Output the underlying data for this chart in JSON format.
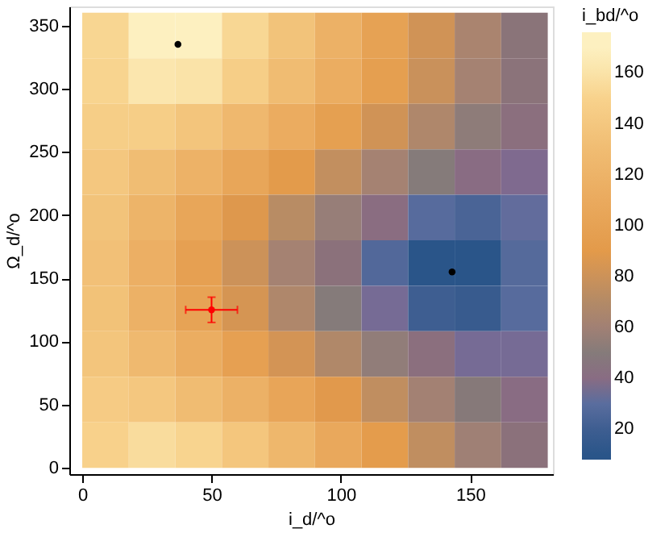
{
  "chart_data": {
    "type": "heatmap",
    "xlabel": "i_d/^o",
    "ylabel": "Ω_d/^o",
    "clabel": "i_bd/^o",
    "x": [
      9,
      27,
      45,
      63,
      81,
      99,
      117,
      135,
      153,
      171
    ],
    "y": [
      342,
      306,
      270,
      234,
      198,
      162,
      126,
      90,
      54,
      18
    ],
    "cells": [
      [
        152,
        169,
        171,
        153,
        136,
        118,
        100,
        82,
        64,
        46
      ],
      [
        151,
        162,
        160,
        146,
        130,
        113,
        96,
        79,
        62,
        45
      ],
      [
        146,
        146,
        138,
        126,
        112,
        97,
        82,
        67,
        53,
        42
      ],
      [
        140,
        131,
        119,
        105,
        91,
        76,
        62,
        50,
        40,
        36
      ],
      [
        136,
        121,
        105,
        88,
        72,
        56,
        41,
        29,
        24,
        31
      ],
      [
        134,
        116,
        98,
        80,
        62,
        44,
        27,
        9,
        11,
        28
      ],
      [
        135,
        118,
        101,
        84,
        67,
        50,
        34,
        20,
        18,
        29
      ],
      [
        138,
        127,
        113,
        98,
        83,
        68,
        54,
        42,
        34,
        34
      ],
      [
        144,
        140,
        130,
        118,
        104,
        89,
        75,
        61,
        49,
        40
      ],
      [
        149,
        156,
        151,
        139,
        124,
        108,
        92,
        75,
        59,
        44
      ]
    ],
    "clim": [
      8,
      176
    ],
    "cticks": [
      20,
      40,
      60,
      80,
      100,
      120,
      140,
      160
    ],
    "colors": [
      "#2a5589",
      "#5a6d9e",
      "#857b7a",
      "#b38a66",
      "#e39a4a",
      "#eaaa5e",
      "#f0bc72",
      "#f8d28c",
      "#fdf0c0"
    ],
    "xlim": [
      -5,
      182
    ],
    "ylim": [
      -5,
      365
    ],
    "xticks": [
      0,
      50,
      100,
      150
    ],
    "yticks": [
      0,
      50,
      100,
      150,
      200,
      250,
      300,
      350
    ],
    "grid": false,
    "series": [
      {
        "type": "scatter",
        "x": [
          50
        ],
        "values": [
          125
        ],
        "color": "#ff0000",
        "errors": [
          10
        ],
        "xerrors": [
          10
        ]
      },
      {
        "type": "scatter",
        "x": [
          37,
          143
        ],
        "values": [
          335,
          155
        ],
        "color": "#000000"
      }
    ]
  }
}
